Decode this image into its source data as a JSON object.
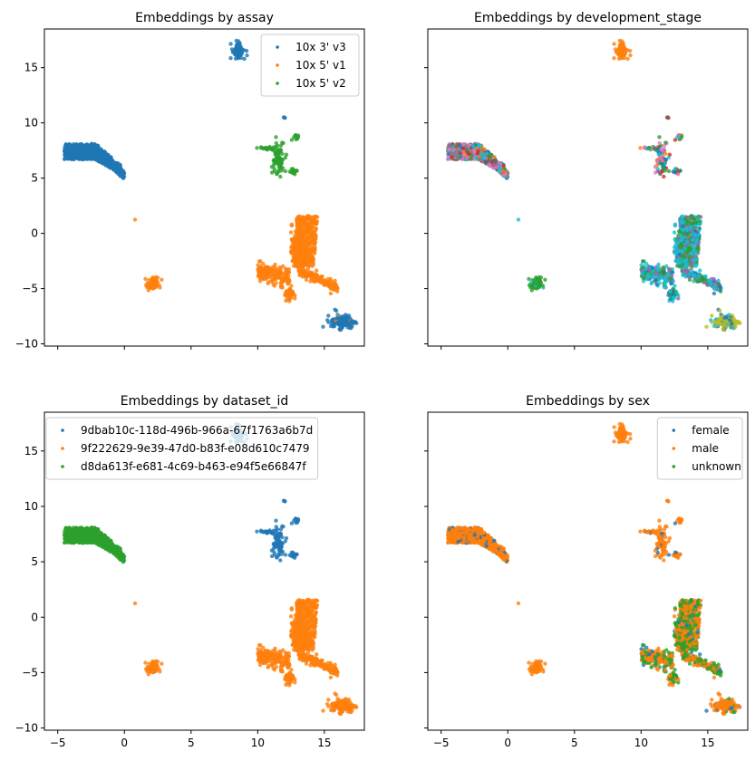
{
  "colors": {
    "c0": "#1f77b4",
    "c1": "#ff7f0e",
    "c2": "#2ca02c",
    "c3": "#d62728",
    "c4": "#9467bd",
    "c5": "#8c564b",
    "c6": "#e377c2",
    "c7": "#7f7f7f",
    "c8": "#bcbd22",
    "c9": "#17becf"
  },
  "chart_data": [
    {
      "type": "scatter",
      "title": "Embeddings by assay",
      "xlabel": "",
      "ylabel": "",
      "xlim": [
        -6,
        18
      ],
      "ylim": [
        -10.2,
        18.5
      ],
      "xticks": [
        "−5",
        "0",
        "5",
        "10",
        "15"
      ],
      "xtick_values": [
        -5,
        0,
        5,
        10,
        15
      ],
      "yticks": [
        "−10",
        "−5",
        "0",
        "5",
        "10",
        "15"
      ],
      "ytick_values": [
        -10,
        -5,
        0,
        5,
        10,
        15
      ],
      "show_xtick_labels": false,
      "show_ytick_labels": true,
      "legend": {
        "position": "top-right",
        "entries": [
          "10x 3' v3",
          "10x 5' v1",
          "10x 5' v2"
        ]
      },
      "clusters": {
        "big_left": "10x 3' v3",
        "top": "10x 3' v3",
        "right_upper": "10x 5' v2",
        "dot_10": "10x 3' v3",
        "large_lower": "10x 5' v1",
        "small_lower": "10x 5' v1",
        "dot_1": "10x 5' v1",
        "bottom_right": "10x 3' v3"
      }
    },
    {
      "type": "scatter",
      "title": "Embeddings by development_stage",
      "xlabel": "",
      "ylabel": "",
      "xlim": [
        -6,
        18
      ],
      "ylim": [
        -10.2,
        18.5
      ],
      "xticks": [
        "−5",
        "0",
        "5",
        "10",
        "15"
      ],
      "xtick_values": [
        -5,
        0,
        5,
        10,
        15
      ],
      "yticks": [
        "−10",
        "−5",
        "0",
        "5",
        "10",
        "15"
      ],
      "ytick_values": [
        -10,
        -5,
        0,
        5,
        10,
        15
      ],
      "show_xtick_labels": false,
      "show_ytick_labels": false,
      "legend": null,
      "clusters": {
        "big_left": "mixed",
        "top": "c1",
        "right_upper": "mixed",
        "dot_10": "c5",
        "large_lower": "c9+c2",
        "small_lower": "c2",
        "dot_1": "c9",
        "bottom_right": "c8+c0"
      }
    },
    {
      "type": "scatter",
      "title": "Embeddings by dataset_id",
      "xlabel": "",
      "ylabel": "",
      "xlim": [
        -6,
        18
      ],
      "ylim": [
        -10.2,
        18.5
      ],
      "xticks": [
        "−5",
        "0",
        "5",
        "10",
        "15"
      ],
      "xtick_values": [
        -5,
        0,
        5,
        10,
        15
      ],
      "yticks": [
        "−10",
        "−5",
        "0",
        "5",
        "10",
        "15"
      ],
      "ytick_values": [
        -10,
        -5,
        0,
        5,
        10,
        15
      ],
      "show_xtick_labels": true,
      "show_ytick_labels": true,
      "legend": {
        "position": "top-left",
        "entries": [
          "9dbab10c-118d-496b-966a-67f1763a6b7d",
          "9f222629-9e39-47d0-b83f-e08d610c7479",
          "d8da613f-e681-4c69-b463-e94f5e66847f"
        ]
      },
      "clusters": {
        "big_left": "d8da613f-e681-4c69-b463-e94f5e66847f",
        "top": "9dbab10c-118d-496b-966a-67f1763a6b7d",
        "right_upper": "9dbab10c-118d-496b-966a-67f1763a6b7d",
        "dot_10": "9dbab10c-118d-496b-966a-67f1763a6b7d",
        "large_lower": "9f222629-9e39-47d0-b83f-e08d610c7479",
        "small_lower": "9f222629-9e39-47d0-b83f-e08d610c7479",
        "dot_1": "9f222629-9e39-47d0-b83f-e08d610c7479",
        "bottom_right": "9f222629-9e39-47d0-b83f-e08d610c7479"
      }
    },
    {
      "type": "scatter",
      "title": "Embeddings by sex",
      "xlabel": "",
      "ylabel": "",
      "xlim": [
        -6,
        18
      ],
      "ylim": [
        -10.2,
        18.5
      ],
      "xticks": [
        "−5",
        "0",
        "5",
        "10",
        "15"
      ],
      "xtick_values": [
        -5,
        0,
        5,
        10,
        15
      ],
      "yticks": [
        "−10",
        "−5",
        "0",
        "5",
        "10",
        "15"
      ],
      "ytick_values": [
        -10,
        -5,
        0,
        5,
        10,
        15
      ],
      "show_xtick_labels": true,
      "show_ytick_labels": false,
      "legend": {
        "position": "top-right",
        "entries": [
          "female",
          "male",
          "unknown"
        ]
      },
      "clusters": {
        "big_left": "male",
        "top": "male",
        "right_upper": "male",
        "dot_10": "male",
        "large_lower": "male+unknown",
        "small_lower": "male",
        "dot_1": "male",
        "bottom_right": "male"
      }
    }
  ]
}
